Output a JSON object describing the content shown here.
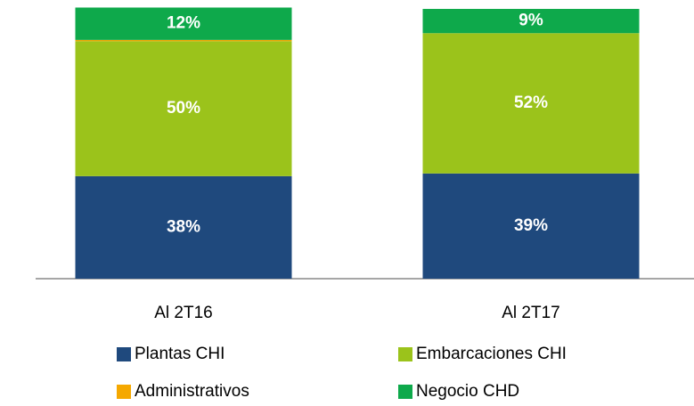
{
  "chart_data": {
    "type": "stacked_bar",
    "categories": [
      "Al 2T16",
      "Al 2T17"
    ],
    "series": [
      {
        "name": "Plantas CHI",
        "color": "#1f497d",
        "values": [
          38,
          39
        ],
        "value_labels": [
          "38%",
          "39%"
        ]
      },
      {
        "name": "Embarcaciones CHI",
        "color": "#9bc31b",
        "values": [
          50,
          52
        ],
        "value_labels": [
          "50%",
          "52%"
        ]
      },
      {
        "name": "Administrativos",
        "color": "#f5a800",
        "values": [
          0.5,
          0
        ]
      },
      {
        "name": "Negocio CHD",
        "color": "#0ea94b",
        "values": [
          12,
          9
        ],
        "value_labels": [
          "12%",
          "9%"
        ]
      }
    ],
    "ylim": [
      0,
      100
    ]
  }
}
